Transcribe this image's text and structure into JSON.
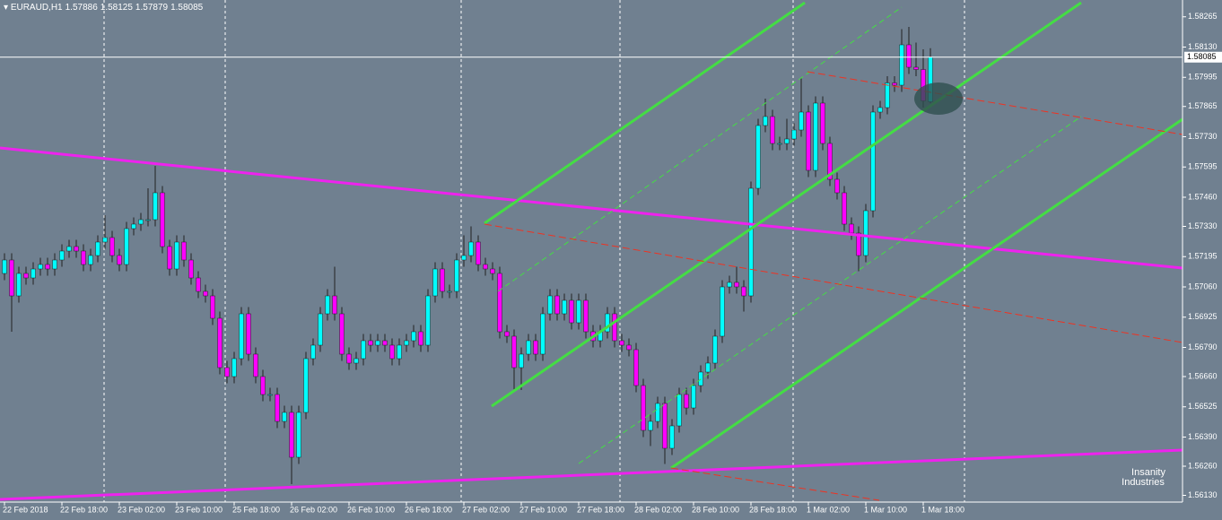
{
  "chart_data": {
    "type": "candlestick",
    "symbol": "EURAUD,H1",
    "categories": [
      "22 Feb 2018",
      null,
      null,
      null,
      null,
      null,
      null,
      null,
      "22 Feb 18:00",
      null,
      null,
      null,
      null,
      null,
      null,
      null,
      "23 Feb 02:00",
      null,
      null,
      null,
      null,
      null,
      null,
      null,
      "23 Feb 10:00",
      null,
      null,
      null,
      null,
      null,
      null,
      null,
      "25 Feb 18:00",
      null,
      null,
      null,
      null,
      null,
      null,
      null,
      "26 Feb 02:00",
      null,
      null,
      null,
      null,
      null,
      null,
      null,
      "26 Feb 10:00",
      null,
      null,
      null,
      null,
      null,
      null,
      null,
      "26 Feb 18:00",
      null,
      null,
      null,
      null,
      null,
      null,
      null,
      "27 Feb 02:00",
      null,
      null,
      null,
      null,
      null,
      null,
      null,
      "27 Feb 10:00",
      null,
      null,
      null,
      null,
      null,
      null,
      null,
      "27 Feb 18:00",
      null,
      null,
      null,
      null,
      null,
      null,
      null,
      "28 Feb 02:00",
      null,
      null,
      null,
      null,
      null,
      null,
      null,
      "28 Feb 10:00",
      null,
      null,
      null,
      null,
      null,
      null,
      null,
      "28 Feb 18:00",
      null,
      null,
      null,
      null,
      null,
      null,
      null,
      "1 Mar 02:00",
      null,
      null,
      null,
      null,
      null,
      null,
      null,
      "1 Mar 10:00",
      null,
      null,
      null,
      null,
      null,
      null,
      null,
      "1 Mar 18:00",
      null
    ],
    "open": [
      1.5712,
      1.5718,
      1.5702,
      1.5712,
      1.571,
      1.5714,
      1.5716,
      1.5714,
      1.5718,
      1.5722,
      1.5724,
      1.5722,
      1.5716,
      1.572,
      1.5726,
      1.5728,
      1.572,
      1.5716,
      1.5732,
      1.5734,
      1.5736,
      1.5736,
      1.5748,
      1.5724,
      1.5714,
      1.5726,
      1.5718,
      1.571,
      1.5704,
      1.5702,
      1.5692,
      1.567,
      1.5666,
      1.5674,
      1.5694,
      1.5676,
      1.5666,
      1.5658,
      1.5658,
      1.5646,
      1.565,
      1.563,
      1.565,
      1.5674,
      1.568,
      1.5694,
      1.5702,
      1.5694,
      1.5676,
      1.5672,
      1.5674,
      1.5682,
      1.568,
      1.5682,
      1.568,
      1.5674,
      1.568,
      1.5682,
      1.5686,
      1.568,
      1.5702,
      1.5714,
      1.5704,
      1.5704,
      1.5718,
      1.572,
      1.5726,
      1.5716,
      1.5714,
      1.5712,
      1.5686,
      1.5684,
      1.567,
      1.5676,
      1.5682,
      1.5676,
      1.5694,
      1.5702,
      1.5694,
      1.57,
      1.569,
      1.57,
      1.5686,
      1.5682,
      1.5686,
      1.5694,
      1.5682,
      1.568,
      1.5678,
      1.5662,
      1.5642,
      1.5646,
      1.5654,
      1.5634,
      1.5644,
      1.5658,
      1.5652,
      1.5662,
      1.5668,
      1.5672,
      1.5684,
      1.5706,
      1.5708,
      1.5706,
      1.5702,
      1.575,
      1.5778,
      1.5782,
      1.577,
      1.577,
      1.5772,
      1.5776,
      1.5784,
      1.5758,
      1.5788,
      1.577,
      1.5754,
      1.5748,
      1.5734,
      1.573,
      1.572,
      1.574,
      1.5784,
      1.5786,
      1.5797,
      1.5796,
      1.5814,
      1.5804,
      1.5803,
      1.57886
    ],
    "high": [
      1.5721,
      1.5721,
      1.5715,
      1.5715,
      1.5717,
      1.5719,
      1.5719,
      1.5721,
      1.5725,
      1.5727,
      1.5727,
      1.5725,
      1.5723,
      1.5729,
      1.5738,
      1.5731,
      1.5723,
      1.5735,
      1.5737,
      1.5739,
      1.575,
      1.576,
      1.5751,
      1.5727,
      1.5729,
      1.5729,
      1.5721,
      1.5713,
      1.5707,
      1.5705,
      1.5695,
      1.5673,
      1.5677,
      1.5697,
      1.5697,
      1.5679,
      1.5669,
      1.5661,
      1.5661,
      1.5653,
      1.5653,
      1.5653,
      1.5677,
      1.5683,
      1.5697,
      1.5705,
      1.5715,
      1.5697,
      1.5679,
      1.5677,
      1.5685,
      1.5685,
      1.5685,
      1.5685,
      1.5683,
      1.5683,
      1.5685,
      1.5689,
      1.5689,
      1.5705,
      1.5717,
      1.5717,
      1.5707,
      1.5721,
      1.5729,
      1.5733,
      1.5729,
      1.5719,
      1.5717,
      1.5715,
      1.5689,
      1.5687,
      1.5679,
      1.5685,
      1.5685,
      1.5697,
      1.5705,
      1.5705,
      1.5703,
      1.5703,
      1.5703,
      1.5703,
      1.5689,
      1.5689,
      1.5697,
      1.5697,
      1.5685,
      1.5683,
      1.5681,
      1.5665,
      1.5649,
      1.5657,
      1.5657,
      1.5647,
      1.5661,
      1.5661,
      1.5665,
      1.5671,
      1.5675,
      1.5687,
      1.5709,
      1.5711,
      1.5715,
      1.5709,
      1.5753,
      1.5781,
      1.579,
      1.5785,
      1.5773,
      1.5781,
      1.5779,
      1.5799,
      1.5787,
      1.5791,
      1.5791,
      1.5773,
      1.5757,
      1.5751,
      1.5737,
      1.5733,
      1.5743,
      1.5787,
      1.5789,
      1.58,
      1.58,
      1.5821,
      1.5822,
      1.5815,
      1.5812,
      1.58125
    ],
    "low": [
      1.5709,
      1.5686,
      1.5699,
      1.5707,
      1.5707,
      1.5711,
      1.5711,
      1.5711,
      1.5715,
      1.5719,
      1.5719,
      1.5713,
      1.5713,
      1.5717,
      1.5723,
      1.5717,
      1.5713,
      1.5713,
      1.5729,
      1.5731,
      1.5733,
      1.5733,
      1.5721,
      1.5711,
      1.5711,
      1.5715,
      1.5707,
      1.5701,
      1.5699,
      1.5689,
      1.5667,
      1.5663,
      1.5663,
      1.5671,
      1.5673,
      1.5663,
      1.5655,
      1.5655,
      1.5643,
      1.5643,
      1.5618,
      1.5627,
      1.5647,
      1.5671,
      1.5677,
      1.5691,
      1.5691,
      1.5673,
      1.5669,
      1.5669,
      1.5671,
      1.5677,
      1.5677,
      1.5677,
      1.5671,
      1.5671,
      1.5677,
      1.5679,
      1.5677,
      1.5677,
      1.5699,
      1.5701,
      1.5701,
      1.5701,
      1.5715,
      1.5717,
      1.5713,
      1.5711,
      1.5709,
      1.5683,
      1.5681,
      1.566,
      1.566,
      1.5673,
      1.5673,
      1.5673,
      1.5691,
      1.5691,
      1.5691,
      1.5687,
      1.5687,
      1.5683,
      1.5679,
      1.5679,
      1.5683,
      1.5679,
      1.5677,
      1.5675,
      1.5659,
      1.5639,
      1.5635,
      1.5643,
      1.5627,
      1.5631,
      1.5641,
      1.5649,
      1.5649,
      1.5659,
      1.5665,
      1.5669,
      1.5681,
      1.5703,
      1.5703,
      1.5695,
      1.5699,
      1.5747,
      1.5775,
      1.5767,
      1.5767,
      1.5767,
      1.5769,
      1.5773,
      1.5755,
      1.5755,
      1.5767,
      1.5751,
      1.5745,
      1.5731,
      1.5727,
      1.5713,
      1.5717,
      1.5737,
      1.5781,
      1.5783,
      1.5793,
      1.5793,
      1.5801,
      1.58,
      1.5786,
      1.57879
    ],
    "close": [
      1.5718,
      1.5702,
      1.5712,
      1.571,
      1.5714,
      1.5716,
      1.5714,
      1.5718,
      1.5722,
      1.5724,
      1.5722,
      1.5716,
      1.572,
      1.5726,
      1.5728,
      1.572,
      1.5716,
      1.5732,
      1.5734,
      1.5736,
      1.5736,
      1.5748,
      1.5724,
      1.5714,
      1.5726,
      1.5718,
      1.571,
      1.5704,
      1.5702,
      1.5692,
      1.567,
      1.5666,
      1.5674,
      1.5694,
      1.5676,
      1.5666,
      1.5658,
      1.5658,
      1.5646,
      1.565,
      1.563,
      1.565,
      1.5674,
      1.568,
      1.5694,
      1.5702,
      1.5694,
      1.5676,
      1.5672,
      1.5674,
      1.5682,
      1.568,
      1.5682,
      1.568,
      1.5674,
      1.568,
      1.5682,
      1.5686,
      1.568,
      1.5702,
      1.5714,
      1.5704,
      1.5704,
      1.5718,
      1.572,
      1.5726,
      1.5716,
      1.5714,
      1.5712,
      1.5686,
      1.5684,
      1.567,
      1.5676,
      1.5682,
      1.5676,
      1.5694,
      1.5702,
      1.5694,
      1.57,
      1.569,
      1.57,
      1.5686,
      1.5682,
      1.5686,
      1.5694,
      1.5682,
      1.568,
      1.5678,
      1.5662,
      1.5642,
      1.5646,
      1.5654,
      1.5634,
      1.5644,
      1.5658,
      1.5652,
      1.5662,
      1.5668,
      1.5672,
      1.5684,
      1.5706,
      1.5708,
      1.5706,
      1.5702,
      1.575,
      1.5778,
      1.5782,
      1.577,
      1.577,
      1.5772,
      1.5776,
      1.5784,
      1.5758,
      1.5788,
      1.577,
      1.5754,
      1.5748,
      1.5734,
      1.573,
      1.572,
      1.574,
      1.5784,
      1.5786,
      1.5797,
      1.5796,
      1.5814,
      1.5804,
      1.5803,
      1.5789,
      1.58085
    ],
    "up_color": "#00ffff",
    "down_color": "#ff00ff",
    "ylim": [
      1.561,
      1.5834
    ],
    "yticks": [
      1.58265,
      {
        "value": 1.5813,
        "label": "1.58130"
      },
      1.57995,
      1.57865,
      {
        "value": 1.5773,
        "label": "1.57730"
      },
      1.57595,
      {
        "value": 1.5746,
        "label": "1.57460"
      },
      {
        "value": 1.5733,
        "label": "1.57330"
      },
      1.57195,
      {
        "value": 1.5706,
        "label": "1.57060"
      },
      1.56925,
      {
        "value": 1.5679,
        "label": "1.56790"
      },
      {
        "value": 1.5666,
        "label": "1.56660"
      },
      1.56525,
      {
        "value": 1.5639,
        "label": "1.56390"
      },
      {
        "value": 1.5626,
        "label": "1.56260"
      },
      {
        "value": 1.5613,
        "label": "1.56130"
      }
    ],
    "watermark": [
      "Insanity",
      "Industries"
    ]
  }
}
